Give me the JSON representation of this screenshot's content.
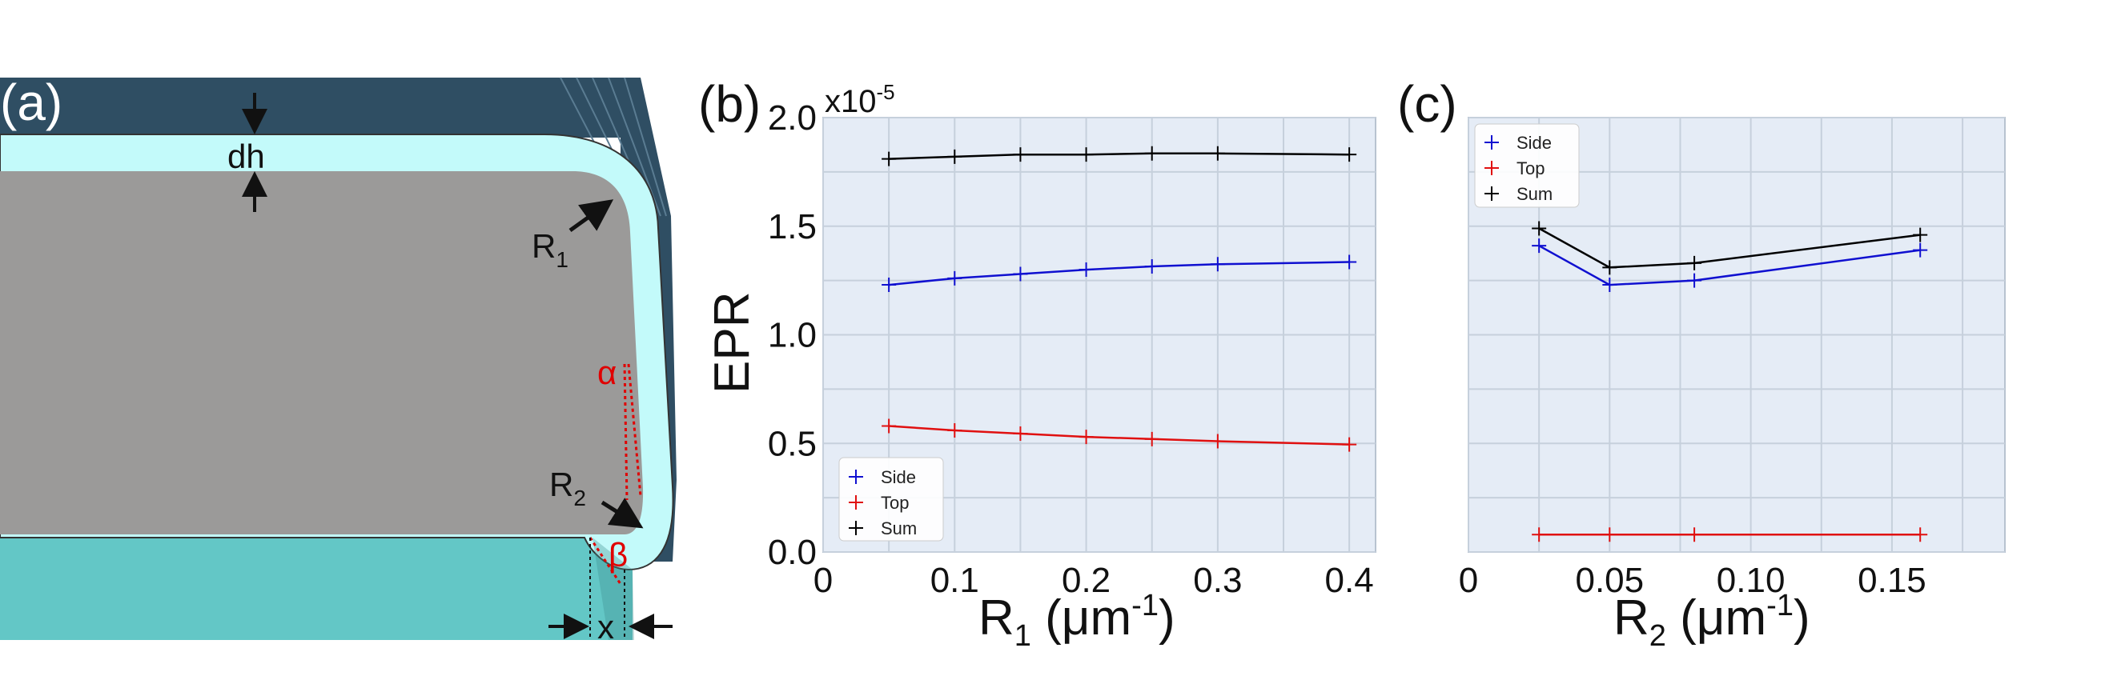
{
  "panel_a": {
    "label": "(a)",
    "dh_label": "dh",
    "r1_label": "R",
    "r1_sub": "1",
    "r2_label": "R",
    "r2_sub": "2",
    "alpha_label": "α",
    "beta_label": "β",
    "x_label": "x",
    "colors": {
      "top_layer": "#2f4e63",
      "film": "#c3fafa",
      "body": "#9b9a99",
      "substrate": "#63c7c6",
      "annotation_red": "#e00000"
    }
  },
  "chart_data": [
    {
      "type": "line",
      "panel_label": "(b)",
      "xlabel": "R",
      "xlabel_sub": "1",
      "xlabel_unit_pre": " (μm",
      "xlabel_unit_sup": "-1",
      "xlabel_unit_post": ")",
      "ylabel": "EPR",
      "y_multiplier": "x10",
      "y_multiplier_exp": "-5",
      "xlim": [
        0,
        0.42
      ],
      "ylim": [
        0,
        2.0
      ],
      "xticks": [
        0,
        0.1,
        0.2,
        0.3,
        0.4
      ],
      "xtick_labels": [
        "0",
        "0.1",
        "0.2",
        "0.3",
        "0.4"
      ],
      "yticks": [
        0,
        0.5,
        1.0,
        1.5,
        2.0
      ],
      "ytick_labels": [
        "0.0",
        "0.5",
        "1.0",
        "1.5",
        "2.0"
      ],
      "grid": true,
      "legend_position": "bottom-left",
      "x": [
        0.05,
        0.1,
        0.15,
        0.2,
        0.25,
        0.3,
        0.4
      ],
      "series": [
        {
          "name": "Side",
          "color": "#1010d0",
          "values": [
            1.23,
            1.26,
            1.28,
            1.3,
            1.315,
            1.325,
            1.335
          ]
        },
        {
          "name": "Top",
          "color": "#e01010",
          "values": [
            0.58,
            0.56,
            0.545,
            0.53,
            0.52,
            0.51,
            0.495
          ]
        },
        {
          "name": "Sum",
          "color": "#000000",
          "values": [
            1.81,
            1.82,
            1.83,
            1.83,
            1.835,
            1.835,
            1.83
          ]
        }
      ]
    },
    {
      "type": "line",
      "panel_label": "(c)",
      "xlabel": "R",
      "xlabel_sub": "2",
      "xlabel_unit_pre": " (μm",
      "xlabel_unit_sup": "-1",
      "xlabel_unit_post": ")",
      "xlim": [
        0,
        0.19
      ],
      "ylim": [
        0,
        2.0
      ],
      "xticks": [
        0,
        0.05,
        0.1,
        0.15
      ],
      "xtick_labels": [
        "0",
        "0.05",
        "0.10",
        "0.15"
      ],
      "yticks": [
        0,
        0.5,
        1.0,
        1.5,
        2.0
      ],
      "grid": true,
      "legend_position": "top-left",
      "x": [
        0.025,
        0.05,
        0.08,
        0.16
      ],
      "series": [
        {
          "name": "Side",
          "color": "#1010d0",
          "values": [
            1.41,
            1.23,
            1.25,
            1.39
          ]
        },
        {
          "name": "Top",
          "color": "#e01010",
          "values": [
            0.08,
            0.08,
            0.08,
            0.08
          ]
        },
        {
          "name": "Sum",
          "color": "#000000",
          "values": [
            1.49,
            1.31,
            1.33,
            1.46
          ]
        }
      ]
    }
  ]
}
